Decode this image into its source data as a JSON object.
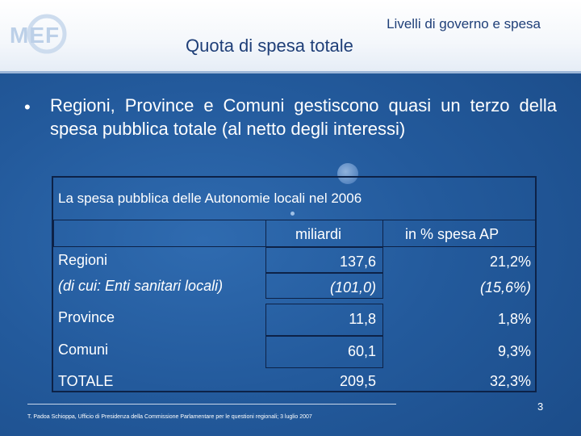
{
  "header": {
    "logo_text": "MEF",
    "top_title": "Livelli di governo e spesa",
    "main_title": "Quota di spesa totale"
  },
  "bullet": {
    "symbol": "•",
    "text": "Regioni, Province e Comuni gestiscono quasi un terzo della spesa pubblica  totale (al netto degli interessi)"
  },
  "table": {
    "title": "La spesa pubblica delle Autonomie locali nel 2006",
    "columns": [
      "miliardi",
      "in % spesa AP"
    ],
    "rows": [
      {
        "label": "Regioni",
        "miliardi": "137,6",
        "percent": "21,2%"
      },
      {
        "label": "(di cui: Enti sanitari locali)",
        "miliardi": "(101,0)",
        "percent": "(15,6%)"
      },
      {
        "label": "Province",
        "miliardi": "11,8",
        "percent": "1,8%"
      },
      {
        "label": "Comuni",
        "miliardi": "60,1",
        "percent": "9,3%"
      },
      {
        "label": "TOTALE",
        "miliardi": "209,5",
        "percent": "32,3%"
      }
    ]
  },
  "footer": {
    "source": "T. Padoa Schioppa, Ufficio di Presidenza della Commissione Parlamentare per le questioni regionali; 3 luglio 2007",
    "page_number": "3"
  },
  "colors": {
    "background": "#235a9c",
    "title_blue": "#1f3f78",
    "border": "#0d2247"
  }
}
